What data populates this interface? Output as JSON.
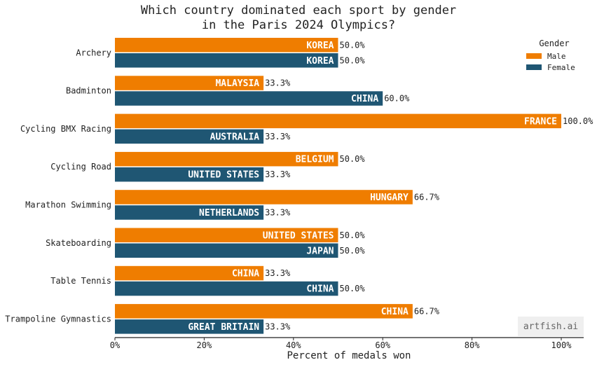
{
  "chart_data": {
    "type": "bar",
    "orientation": "horizontal",
    "title": "Which country dominated each sport by gender\nin the Paris 2024 Olympics?",
    "xlabel": "Percent of medals won",
    "xlim": [
      0,
      100
    ],
    "xticks": [
      "0%",
      "20%",
      "40%",
      "60%",
      "80%",
      "100%"
    ],
    "categories": [
      "Archery",
      "Badminton",
      "Cycling BMX Racing",
      "Cycling Road",
      "Marathon Swimming",
      "Skateboarding",
      "Table Tennis",
      "Trampoline Gymnastics"
    ],
    "series": [
      {
        "name": "Male",
        "color": "#ef7d00",
        "values": [
          50.0,
          33.3,
          100.0,
          50.0,
          66.7,
          50.0,
          33.3,
          66.7
        ],
        "value_labels": [
          "50.0%",
          "33.3%",
          "100.0%",
          "50.0%",
          "66.7%",
          "50.0%",
          "33.3%",
          "66.7%"
        ],
        "countries": [
          "KOREA",
          "MALAYSIA",
          "FRANCE",
          "BELGIUM",
          "HUNGARY",
          "UNITED STATES",
          "CHINA",
          "CHINA"
        ]
      },
      {
        "name": "Female",
        "color": "#1f5673",
        "values": [
          50.0,
          60.0,
          33.3,
          33.3,
          33.3,
          50.0,
          50.0,
          33.3
        ],
        "value_labels": [
          "50.0%",
          "60.0%",
          "33.3%",
          "33.3%",
          "33.3%",
          "50.0%",
          "50.0%",
          "33.3%"
        ],
        "countries": [
          "KOREA",
          "CHINA",
          "AUSTRALIA",
          "UNITED STATES",
          "NETHERLANDS",
          "JAPAN",
          "CHINA",
          "GREAT BRITAIN"
        ]
      }
    ],
    "legend": {
      "title": "Gender",
      "position": "top-right"
    },
    "grid": false
  },
  "watermark": "artfish.ai"
}
